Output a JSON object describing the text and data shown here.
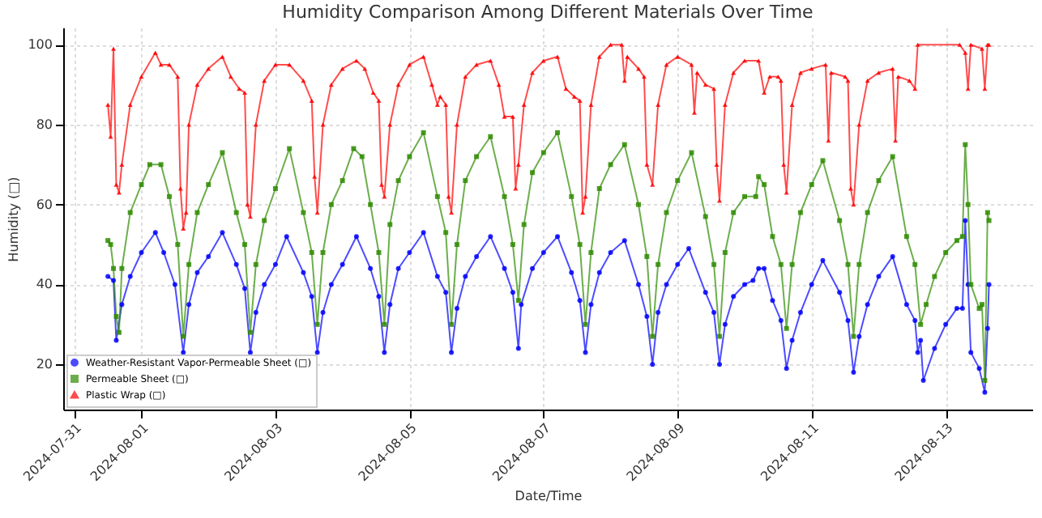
{
  "chart_data": {
    "type": "line",
    "title": "Humidity Comparison Among Different Materials Over Time",
    "xlabel": "Date/Time",
    "ylabel": "Humidity (□)",
    "xlim": [
      "2024-07-30T20:00",
      "2024-08-14T07:00"
    ],
    "xticks": [
      "2024-07-31",
      "2024-08-01",
      "2024-08-03",
      "2024-08-05",
      "2024-08-07",
      "2024-08-09",
      "2024-08-11",
      "2024-08-13"
    ],
    "ylim": [
      8.7,
      104.3
    ],
    "yticks": [
      20,
      40,
      60,
      80,
      100
    ],
    "grid": true,
    "legend": "bottom left",
    "line_style": "solid",
    "series": [
      {
        "name": "Weather-Resistant Vapor-Permeable Sheet (□)",
        "color": "#0000ff",
        "marker": "circle",
        "x": [
          "2024-07-31T12:00",
          "2024-07-31T14:00",
          "2024-07-31T15:00",
          "2024-07-31T17:00",
          "2024-07-31T20:00",
          "2024-08-01T00:00",
          "2024-08-01T05:00",
          "2024-08-01T08:00",
          "2024-08-01T12:00",
          "2024-08-01T15:00",
          "2024-08-01T17:00",
          "2024-08-01T20:00",
          "2024-08-02T00:00",
          "2024-08-02T05:00",
          "2024-08-02T10:00",
          "2024-08-02T13:00",
          "2024-08-02T15:00",
          "2024-08-02T17:00",
          "2024-08-02T20:00",
          "2024-08-03T00:00",
          "2024-08-03T04:00",
          "2024-08-03T10:00",
          "2024-08-03T13:00",
          "2024-08-03T15:00",
          "2024-08-03T17:00",
          "2024-08-03T20:00",
          "2024-08-04T00:00",
          "2024-08-04T05:00",
          "2024-08-04T10:00",
          "2024-08-04T13:00",
          "2024-08-04T15:00",
          "2024-08-04T17:00",
          "2024-08-04T20:00",
          "2024-08-05T00:00",
          "2024-08-05T05:00",
          "2024-08-05T10:00",
          "2024-08-05T13:00",
          "2024-08-05T15:00",
          "2024-08-05T17:00",
          "2024-08-05T20:00",
          "2024-08-06T00:00",
          "2024-08-06T05:00",
          "2024-08-06T10:00",
          "2024-08-06T13:00",
          "2024-08-06T15:00",
          "2024-08-06T16:00",
          "2024-08-06T20:00",
          "2024-08-07T00:00",
          "2024-08-07T05:00",
          "2024-08-07T10:00",
          "2024-08-07T13:00",
          "2024-08-07T15:00",
          "2024-08-07T17:00",
          "2024-08-07T20:00",
          "2024-08-08T00:00",
          "2024-08-08T05:00",
          "2024-08-08T10:00",
          "2024-08-08T13:00",
          "2024-08-08T15:00",
          "2024-08-08T17:00",
          "2024-08-08T20:00",
          "2024-08-09T00:00",
          "2024-08-09T04:00",
          "2024-08-09T10:00",
          "2024-08-09T13:00",
          "2024-08-09T15:00",
          "2024-08-09T17:00",
          "2024-08-09T20:00",
          "2024-08-10T00:00",
          "2024-08-10T03:00",
          "2024-08-10T05:00",
          "2024-08-10T07:00",
          "2024-08-10T10:00",
          "2024-08-10T13:00",
          "2024-08-10T15:00",
          "2024-08-10T17:00",
          "2024-08-10T20:00",
          "2024-08-11T00:00",
          "2024-08-11T04:00",
          "2024-08-11T10:00",
          "2024-08-11T13:00",
          "2024-08-11T15:00",
          "2024-08-11T17:00",
          "2024-08-11T20:00",
          "2024-08-12T00:00",
          "2024-08-12T05:00",
          "2024-08-12T10:00",
          "2024-08-12T13:00",
          "2024-08-12T14:00",
          "2024-08-12T15:00",
          "2024-08-12T16:00",
          "2024-08-12T20:00",
          "2024-08-13T00:00",
          "2024-08-13T04:00",
          "2024-08-13T06:00",
          "2024-08-13T07:00",
          "2024-08-13T08:00",
          "2024-08-13T09:00",
          "2024-08-13T12:00",
          "2024-08-13T14:00",
          "2024-08-13T15:00",
          "2024-08-13T15:30"
        ],
        "values": [
          42,
          41,
          26,
          35,
          42,
          48,
          53,
          48,
          40,
          23,
          35,
          43,
          47,
          53,
          45,
          39,
          23,
          33,
          40,
          45,
          52,
          43,
          37,
          23,
          33,
          40,
          45,
          52,
          44,
          37,
          23,
          35,
          44,
          48,
          53,
          42,
          38,
          23,
          34,
          42,
          47,
          52,
          44,
          38,
          24,
          35,
          44,
          48,
          52,
          43,
          36,
          23,
          35,
          43,
          48,
          51,
          40,
          32,
          20,
          33,
          40,
          45,
          49,
          38,
          33,
          20,
          30,
          37,
          40,
          41,
          44,
          44,
          36,
          31,
          19,
          26,
          33,
          40,
          46,
          38,
          31,
          18,
          27,
          35,
          42,
          47,
          35,
          31,
          23,
          26,
          16,
          24,
          30,
          34,
          34,
          56,
          40,
          23,
          19,
          13,
          29,
          40
        ]
      },
      {
        "name": "Permeable Sheet (□)",
        "color": "#2e8b00",
        "marker": "square",
        "x": [
          "2024-07-31T12:00",
          "2024-07-31T13:00",
          "2024-07-31T14:00",
          "2024-07-31T15:00",
          "2024-07-31T16:00",
          "2024-07-31T17:00",
          "2024-07-31T20:00",
          "2024-08-01T00:00",
          "2024-08-01T03:00",
          "2024-08-01T07:00",
          "2024-08-01T10:00",
          "2024-08-01T13:00",
          "2024-08-01T15:00",
          "2024-08-01T17:00",
          "2024-08-01T20:00",
          "2024-08-02T00:00",
          "2024-08-02T05:00",
          "2024-08-02T10:00",
          "2024-08-02T13:00",
          "2024-08-02T15:00",
          "2024-08-02T17:00",
          "2024-08-02T20:00",
          "2024-08-03T00:00",
          "2024-08-03T05:00",
          "2024-08-03T10:00",
          "2024-08-03T13:00",
          "2024-08-03T15:00",
          "2024-08-03T17:00",
          "2024-08-03T20:00",
          "2024-08-04T00:00",
          "2024-08-04T04:00",
          "2024-08-04T07:00",
          "2024-08-04T10:00",
          "2024-08-04T13:00",
          "2024-08-04T15:00",
          "2024-08-04T17:00",
          "2024-08-04T20:00",
          "2024-08-05T00:00",
          "2024-08-05T05:00",
          "2024-08-05T10:00",
          "2024-08-05T13:00",
          "2024-08-05T15:00",
          "2024-08-05T17:00",
          "2024-08-05T20:00",
          "2024-08-06T00:00",
          "2024-08-06T05:00",
          "2024-08-06T10:00",
          "2024-08-06T13:00",
          "2024-08-06T15:00",
          "2024-08-06T17:00",
          "2024-08-06T20:00",
          "2024-08-07T00:00",
          "2024-08-07T05:00",
          "2024-08-07T10:00",
          "2024-08-07T13:00",
          "2024-08-07T15:00",
          "2024-08-07T17:00",
          "2024-08-07T20:00",
          "2024-08-08T00:00",
          "2024-08-08T05:00",
          "2024-08-08T10:00",
          "2024-08-08T13:00",
          "2024-08-08T15:00",
          "2024-08-08T17:00",
          "2024-08-08T20:00",
          "2024-08-09T00:00",
          "2024-08-09T05:00",
          "2024-08-09T10:00",
          "2024-08-09T13:00",
          "2024-08-09T15:00",
          "2024-08-09T17:00",
          "2024-08-09T20:00",
          "2024-08-10T00:00",
          "2024-08-10T04:00",
          "2024-08-10T05:00",
          "2024-08-10T07:00",
          "2024-08-10T10:00",
          "2024-08-10T13:00",
          "2024-08-10T15:00",
          "2024-08-10T17:00",
          "2024-08-10T20:00",
          "2024-08-11T00:00",
          "2024-08-11T04:00",
          "2024-08-11T10:00",
          "2024-08-11T13:00",
          "2024-08-11T15:00",
          "2024-08-11T17:00",
          "2024-08-11T20:00",
          "2024-08-12T00:00",
          "2024-08-12T05:00",
          "2024-08-12T10:00",
          "2024-08-12T13:00",
          "2024-08-12T15:00",
          "2024-08-12T17:00",
          "2024-08-12T20:00",
          "2024-08-13T00:00",
          "2024-08-13T04:00",
          "2024-08-13T06:00",
          "2024-08-13T07:00",
          "2024-08-13T08:00",
          "2024-08-13T09:00",
          "2024-08-13T12:00",
          "2024-08-13T13:00",
          "2024-08-13T14:00",
          "2024-08-13T15:00",
          "2024-08-13T15:30"
        ],
        "values": [
          51,
          50,
          44,
          32,
          28,
          44,
          58,
          65,
          70,
          70,
          62,
          50,
          27,
          45,
          58,
          65,
          73,
          58,
          50,
          28,
          45,
          56,
          64,
          74,
          58,
          48,
          30,
          48,
          60,
          66,
          74,
          72,
          60,
          48,
          30,
          55,
          66,
          72,
          78,
          62,
          53,
          30,
          50,
          66,
          72,
          77,
          62,
          50,
          36,
          55,
          68,
          73,
          78,
          62,
          50,
          30,
          48,
          64,
          70,
          75,
          60,
          47,
          27,
          45,
          58,
          66,
          73,
          57,
          45,
          27,
          48,
          58,
          62,
          62,
          67,
          65,
          52,
          45,
          29,
          45,
          58,
          65,
          71,
          56,
          45,
          27,
          45,
          58,
          66,
          72,
          52,
          45,
          30,
          35,
          42,
          48,
          51,
          52,
          75,
          60,
          40,
          34,
          35,
          16,
          58,
          56
        ]
      },
      {
        "name": "Plastic Wrap (□)",
        "color": "#ff0000",
        "marker": "triangle",
        "x": [
          "2024-07-31T12:00",
          "2024-07-31T13:00",
          "2024-07-31T14:00",
          "2024-07-31T15:00",
          "2024-07-31T16:00",
          "2024-07-31T17:00",
          "2024-07-31T20:00",
          "2024-08-01T00:00",
          "2024-08-01T05:00",
          "2024-08-01T07:00",
          "2024-08-01T10:00",
          "2024-08-01T13:00",
          "2024-08-01T14:00",
          "2024-08-01T15:00",
          "2024-08-01T16:00",
          "2024-08-01T17:00",
          "2024-08-01T20:00",
          "2024-08-02T00:00",
          "2024-08-02T05:00",
          "2024-08-02T08:00",
          "2024-08-02T11:00",
          "2024-08-02T13:00",
          "2024-08-02T14:00",
          "2024-08-02T15:00",
          "2024-08-02T17:00",
          "2024-08-02T20:00",
          "2024-08-03T00:00",
          "2024-08-03T05:00",
          "2024-08-03T10:00",
          "2024-08-03T13:00",
          "2024-08-03T14:00",
          "2024-08-03T15:00",
          "2024-08-03T17:00",
          "2024-08-03T20:00",
          "2024-08-04T00:00",
          "2024-08-04T05:00",
          "2024-08-04T08:00",
          "2024-08-04T11:00",
          "2024-08-04T13:00",
          "2024-08-04T14:00",
          "2024-08-04T15:00",
          "2024-08-04T17:00",
          "2024-08-04T20:00",
          "2024-08-05T00:00",
          "2024-08-05T05:00",
          "2024-08-05T08:00",
          "2024-08-05T10:00",
          "2024-08-05T11:00",
          "2024-08-05T13:00",
          "2024-08-05T14:00",
          "2024-08-05T15:00",
          "2024-08-05T17:00",
          "2024-08-05T20:00",
          "2024-08-06T00:00",
          "2024-08-06T05:00",
          "2024-08-06T08:00",
          "2024-08-06T10:00",
          "2024-08-06T13:00",
          "2024-08-06T14:00",
          "2024-08-06T15:00",
          "2024-08-06T17:00",
          "2024-08-06T20:00",
          "2024-08-07T00:00",
          "2024-08-07T05:00",
          "2024-08-07T08:00",
          "2024-08-07T11:00",
          "2024-08-07T13:00",
          "2024-08-07T14:00",
          "2024-08-07T15:00",
          "2024-08-07T17:00",
          "2024-08-07T20:00",
          "2024-08-08T00:00",
          "2024-08-08T04:00",
          "2024-08-08T05:00",
          "2024-08-08T06:00",
          "2024-08-08T10:00",
          "2024-08-08T12:00",
          "2024-08-08T13:00",
          "2024-08-08T15:00",
          "2024-08-08T17:00",
          "2024-08-08T20:00",
          "2024-08-09T00:00",
          "2024-08-09T05:00",
          "2024-08-09T06:00",
          "2024-08-09T07:00",
          "2024-08-09T10:00",
          "2024-08-09T13:00",
          "2024-08-09T14:00",
          "2024-08-09T15:00",
          "2024-08-09T17:00",
          "2024-08-09T20:00",
          "2024-08-10T00:00",
          "2024-08-10T05:00",
          "2024-08-10T07:00",
          "2024-08-10T09:00",
          "2024-08-10T12:00",
          "2024-08-10T13:00",
          "2024-08-10T14:00",
          "2024-08-10T15:00",
          "2024-08-10T17:00",
          "2024-08-10T20:00",
          "2024-08-11T00:00",
          "2024-08-11T05:00",
          "2024-08-11T06:00",
          "2024-08-11T07:00",
          "2024-08-11T12:00",
          "2024-08-11T13:00",
          "2024-08-11T14:00",
          "2024-08-11T15:00",
          "2024-08-11T17:00",
          "2024-08-11T20:00",
          "2024-08-12T00:00",
          "2024-08-12T05:00",
          "2024-08-12T06:00",
          "2024-08-12T07:00",
          "2024-08-12T11:00",
          "2024-08-12T13:00",
          "2024-08-12T14:00",
          "2024-08-13T05:00",
          "2024-08-13T07:00",
          "2024-08-13T08:00",
          "2024-08-13T09:00",
          "2024-08-13T13:00",
          "2024-08-13T14:00",
          "2024-08-13T15:00",
          "2024-08-13T15:30"
        ],
        "values": [
          85,
          77,
          99,
          65,
          63,
          70,
          85,
          92,
          98,
          95,
          95,
          92,
          64,
          54,
          58,
          80,
          90,
          94,
          97,
          92,
          89,
          88,
          60,
          57,
          80,
          91,
          95,
          95,
          91,
          86,
          67,
          58,
          80,
          90,
          94,
          96,
          94,
          88,
          86,
          65,
          62,
          80,
          90,
          95,
          97,
          90,
          85,
          87,
          85,
          62,
          58,
          80,
          92,
          95,
          96,
          90,
          82,
          82,
          64,
          70,
          85,
          93,
          96,
          97,
          89,
          87,
          86,
          58,
          62,
          85,
          97,
          100,
          100,
          91,
          97,
          94,
          92,
          70,
          65,
          85,
          95,
          97,
          95,
          83,
          93,
          90,
          89,
          70,
          61,
          85,
          93,
          96,
          96,
          88,
          92,
          92,
          91,
          70,
          63,
          85,
          93,
          94,
          95,
          76,
          93,
          92,
          91,
          64,
          60,
          80,
          91,
          93,
          94,
          76,
          92,
          91,
          89,
          100,
          100,
          98,
          89,
          100,
          99,
          89,
          100,
          100
        ]
      }
    ]
  }
}
